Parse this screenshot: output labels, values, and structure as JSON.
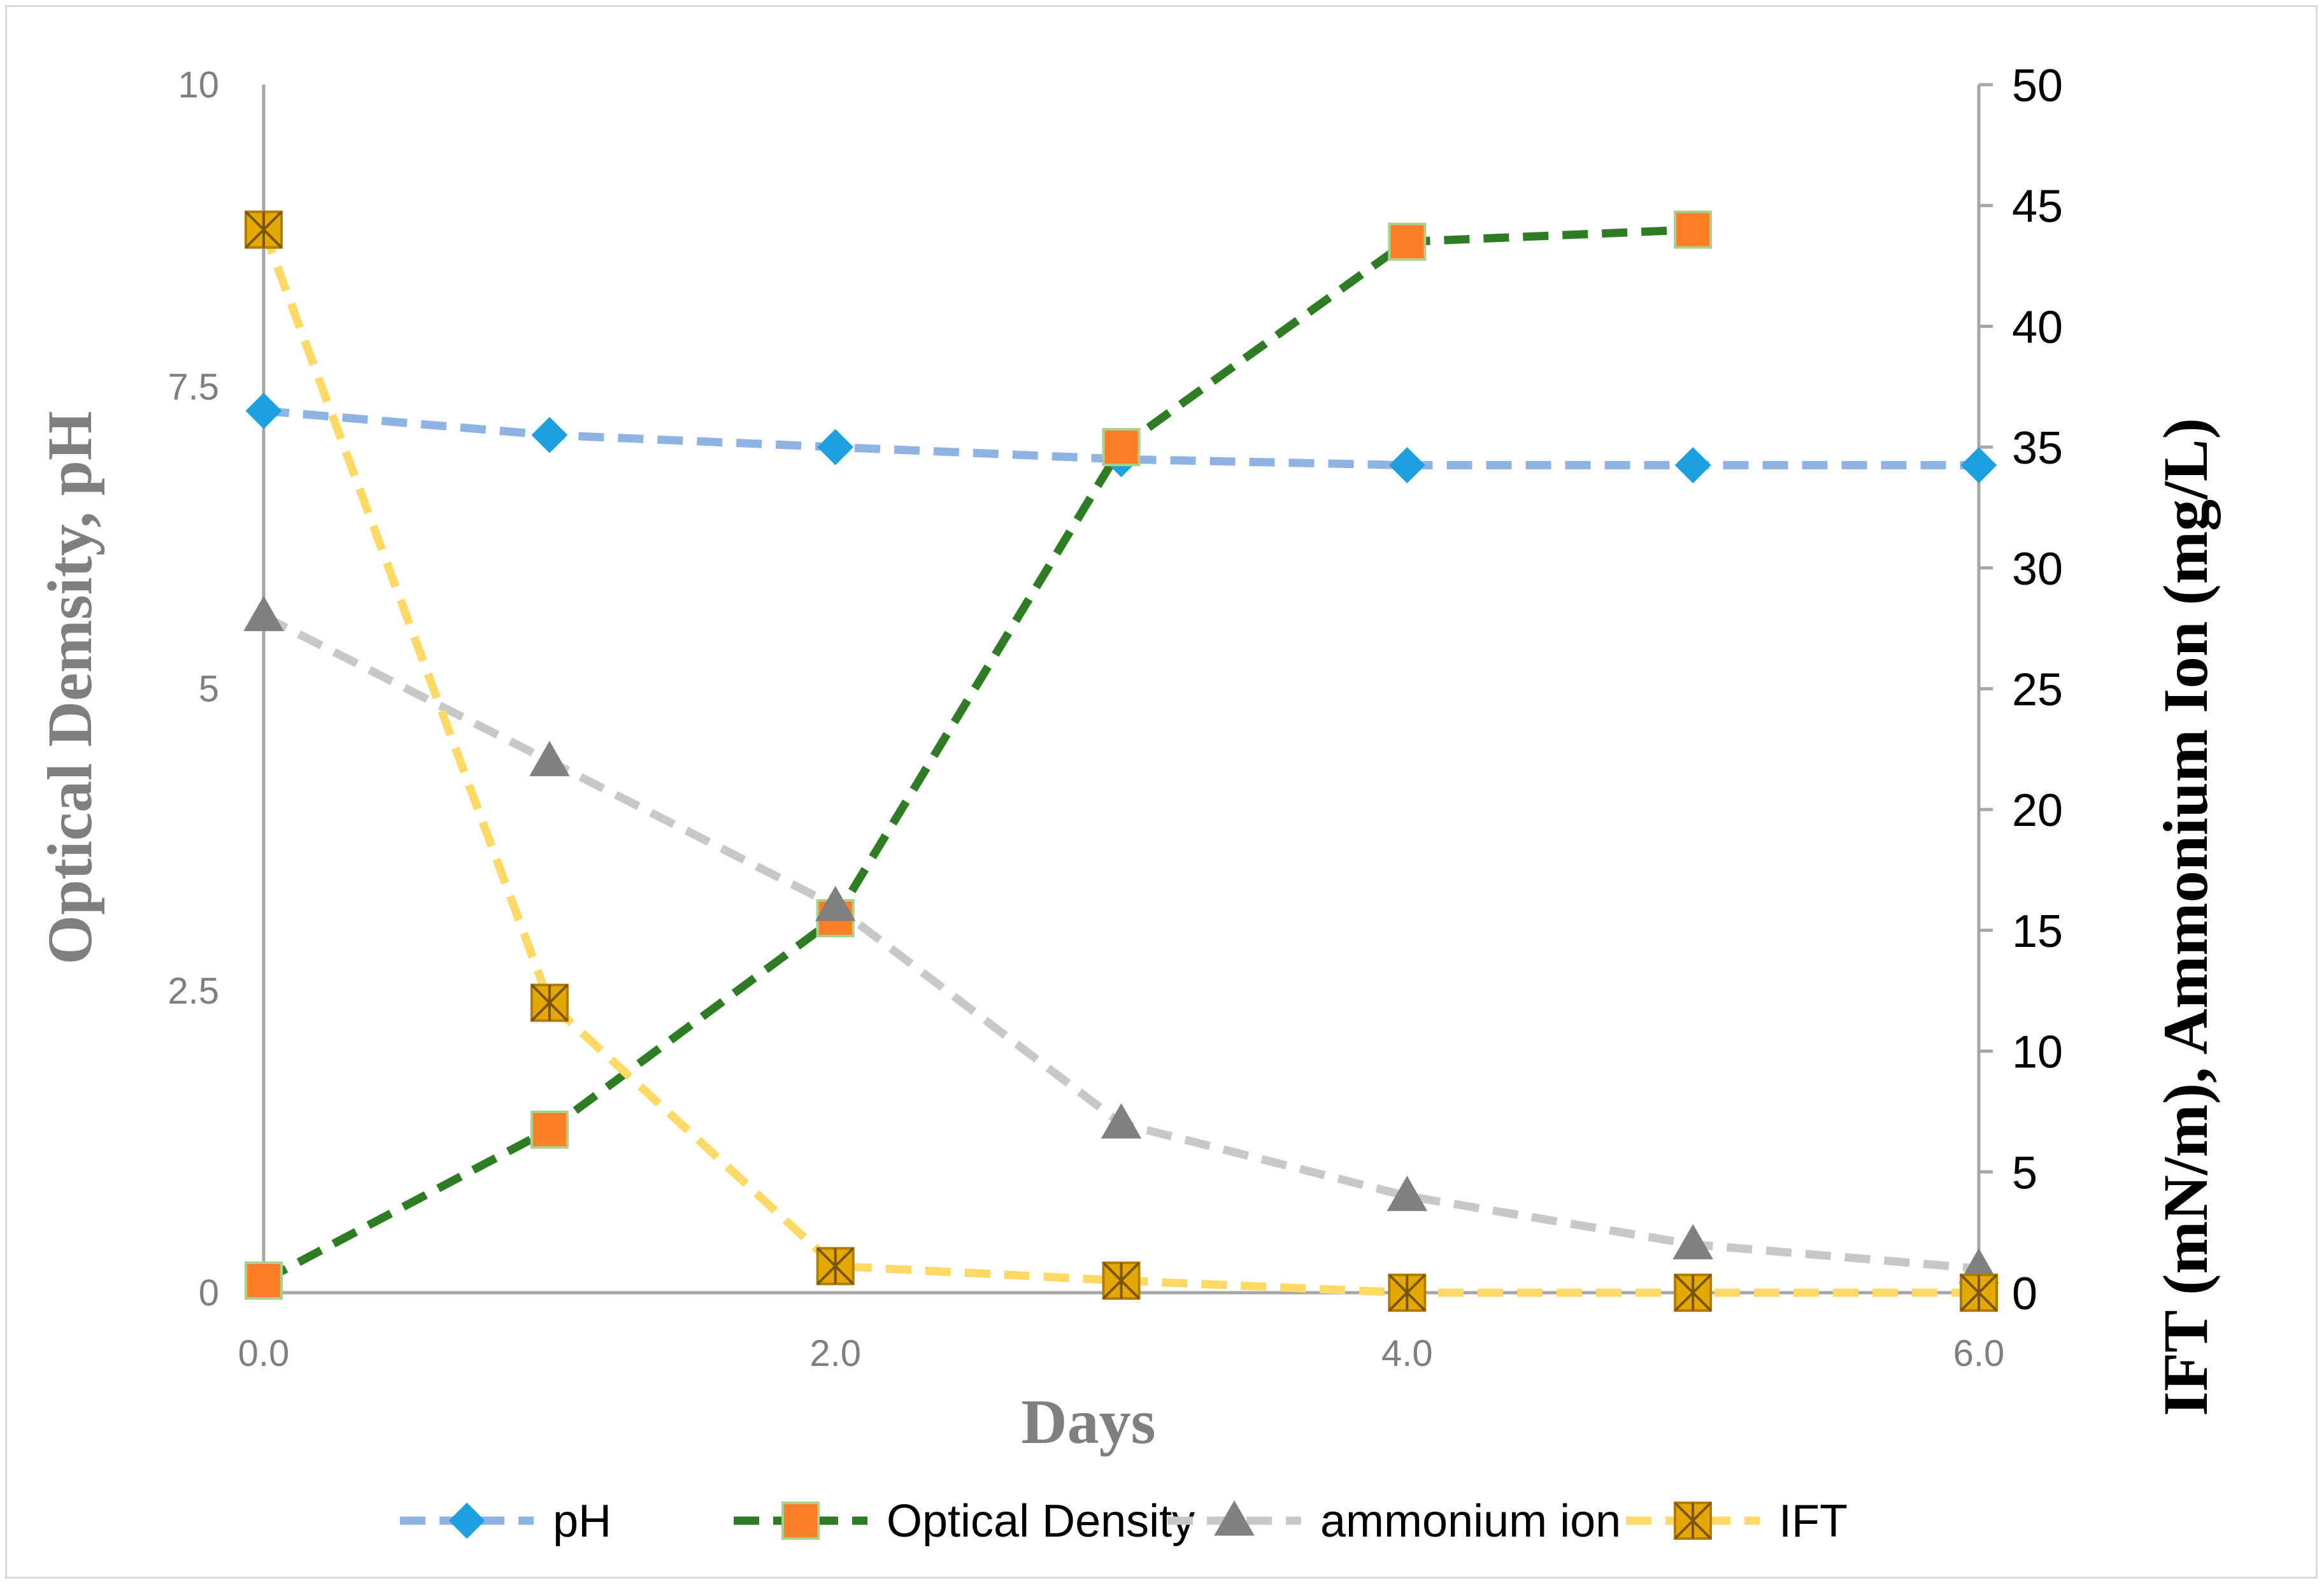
{
  "chart_data": {
    "type": "line",
    "xlabel": "Days",
    "ylabel_left": "Optical Demsity, pH",
    "ylabel_right": "IFT (mN/m), Ammonium Ion (mg/L)",
    "xlim": [
      0,
      6
    ],
    "ylim_left": [
      0,
      10
    ],
    "ylim_right": [
      0,
      50
    ],
    "x_ticks": [
      "0.0",
      "2.0",
      "4.0",
      "6.0"
    ],
    "x_tick_values": [
      0,
      2,
      4,
      6
    ],
    "y_left_ticks": [
      "0",
      "2.5",
      "5",
      "7.5",
      "10"
    ],
    "y_left_tick_values": [
      0,
      2.5,
      5,
      7.5,
      10
    ],
    "y_right_ticks": [
      "0",
      "5",
      "10",
      "15",
      "20",
      "25",
      "30",
      "35",
      "40",
      "45",
      "50"
    ],
    "y_right_tick_values": [
      0,
      5,
      10,
      15,
      20,
      25,
      30,
      35,
      40,
      45,
      50
    ],
    "grid": false,
    "legend_position": "bottom",
    "series": [
      {
        "name": "pH",
        "axis": "left",
        "marker": "diamond",
        "line_color": "#8fb4e3",
        "marker_color": "#1ea0e0",
        "x": [
          0,
          1,
          2,
          3,
          4,
          5,
          6
        ],
        "values": [
          7.3,
          7.1,
          7.0,
          6.9,
          6.85,
          6.85,
          6.85
        ]
      },
      {
        "name": "Optical Density",
        "axis": "left",
        "marker": "square",
        "line_color": "#2e7d25",
        "marker_color": "#ff7f27",
        "x": [
          0,
          1,
          2,
          3,
          4,
          5
        ],
        "values": [
          0.1,
          1.35,
          3.1,
          7.0,
          8.7,
          8.8
        ]
      },
      {
        "name": "ammonium ion",
        "axis": "right",
        "marker": "triangle",
        "line_color": "#c8c8c8",
        "marker_color": "#808080",
        "x": [
          0,
          1,
          2,
          3,
          4,
          5,
          6
        ],
        "values": [
          28,
          22,
          16,
          7,
          4,
          2,
          1
        ]
      },
      {
        "name": "IFT",
        "axis": "right",
        "marker": "square-x",
        "line_color": "#ffd966",
        "marker_color": "#e5a800",
        "x": [
          0,
          1,
          2,
          3,
          4,
          5,
          6
        ],
        "values": [
          44,
          12,
          1.1,
          0.5,
          0,
          0,
          0
        ]
      }
    ]
  }
}
